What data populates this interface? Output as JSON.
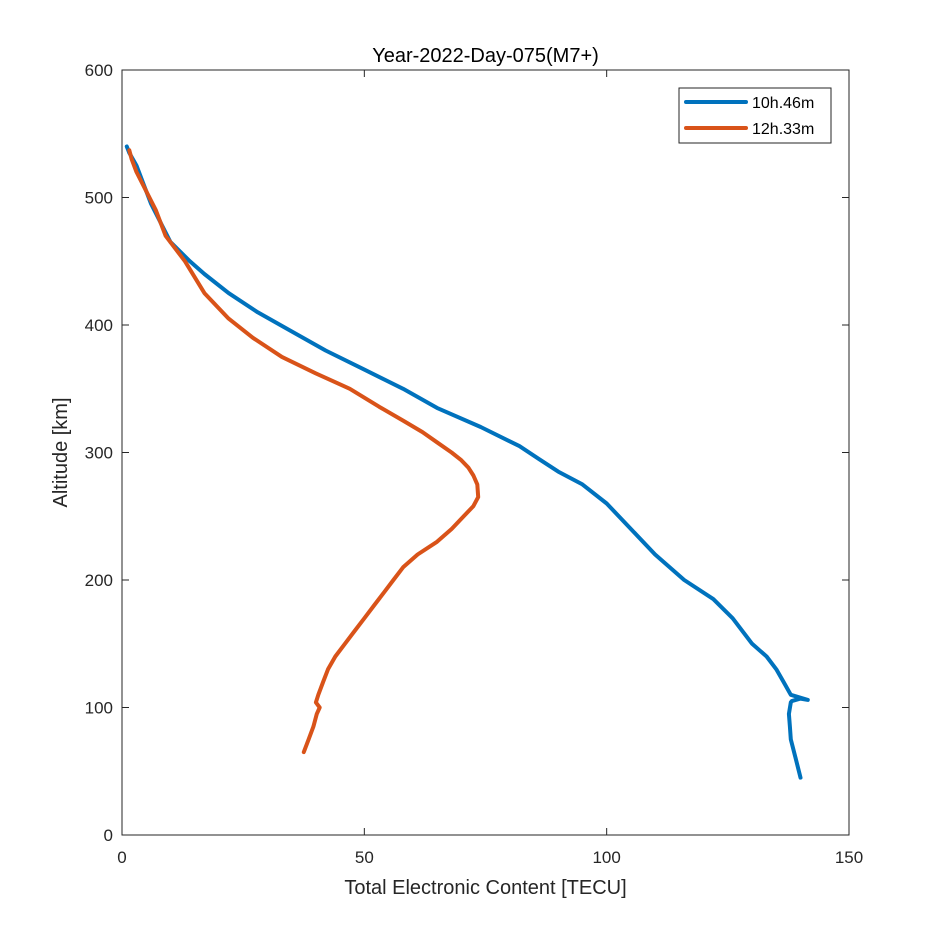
{
  "chart_data": {
    "type": "line",
    "title": "Year-2022-Day-075(M7+)",
    "xlabel": "Total Electronic Content [TECU]",
    "ylabel": "Altitude [km]",
    "xlim": [
      0,
      150
    ],
    "ylim": [
      0,
      600
    ],
    "xticks": [
      0,
      50,
      100,
      150
    ],
    "yticks": [
      0,
      100,
      200,
      300,
      400,
      500,
      600
    ],
    "grid": false,
    "legend_position": "top-right",
    "series": [
      {
        "name": "10h.46m",
        "color": "#0072BD",
        "x": [
          140,
          139,
          138,
          137.8,
          137.6,
          138,
          138.2,
          140,
          141.5,
          138,
          136.5,
          135,
          133,
          130,
          126,
          122,
          116,
          110,
          105,
          100,
          95,
          90,
          86,
          82,
          74,
          65,
          58,
          50,
          42,
          35,
          28,
          22,
          17,
          14,
          10,
          8,
          6,
          4.5,
          3,
          1.5,
          1
        ],
        "y": [
          45,
          60,
          75,
          85,
          95,
          104,
          105,
          107,
          106,
          110,
          120,
          130,
          140,
          150,
          170,
          185,
          200,
          220,
          240,
          260,
          275,
          285,
          295,
          305,
          320,
          335,
          350,
          365,
          380,
          395,
          410,
          425,
          440,
          450,
          465,
          480,
          495,
          510,
          525,
          535,
          540
        ]
      },
      {
        "name": "12h.33m",
        "color": "#D95319",
        "x": [
          37.5,
          38.5,
          39.5,
          40.2,
          40.8,
          40,
          40.5,
          41.5,
          42.5,
          44,
          46,
          48,
          50,
          52,
          54,
          56,
          58,
          61,
          65,
          68,
          70.5,
          72.5,
          73.5,
          73.3,
          72.5,
          71.5,
          70,
          68,
          65,
          62,
          58,
          53,
          47,
          40,
          33,
          27,
          22,
          17,
          13,
          9,
          7,
          5,
          3,
          2,
          1.5
        ],
        "y": [
          65,
          75,
          85,
          95,
          100,
          104,
          110,
          120,
          130,
          140,
          150,
          160,
          170,
          180,
          190,
          200,
          210,
          220,
          230,
          240,
          250,
          258,
          265,
          275,
          282,
          288,
          294,
          300,
          308,
          316,
          325,
          336,
          350,
          362,
          375,
          390,
          405,
          425,
          450,
          470,
          490,
          505,
          520,
          530,
          537
        ]
      }
    ]
  }
}
